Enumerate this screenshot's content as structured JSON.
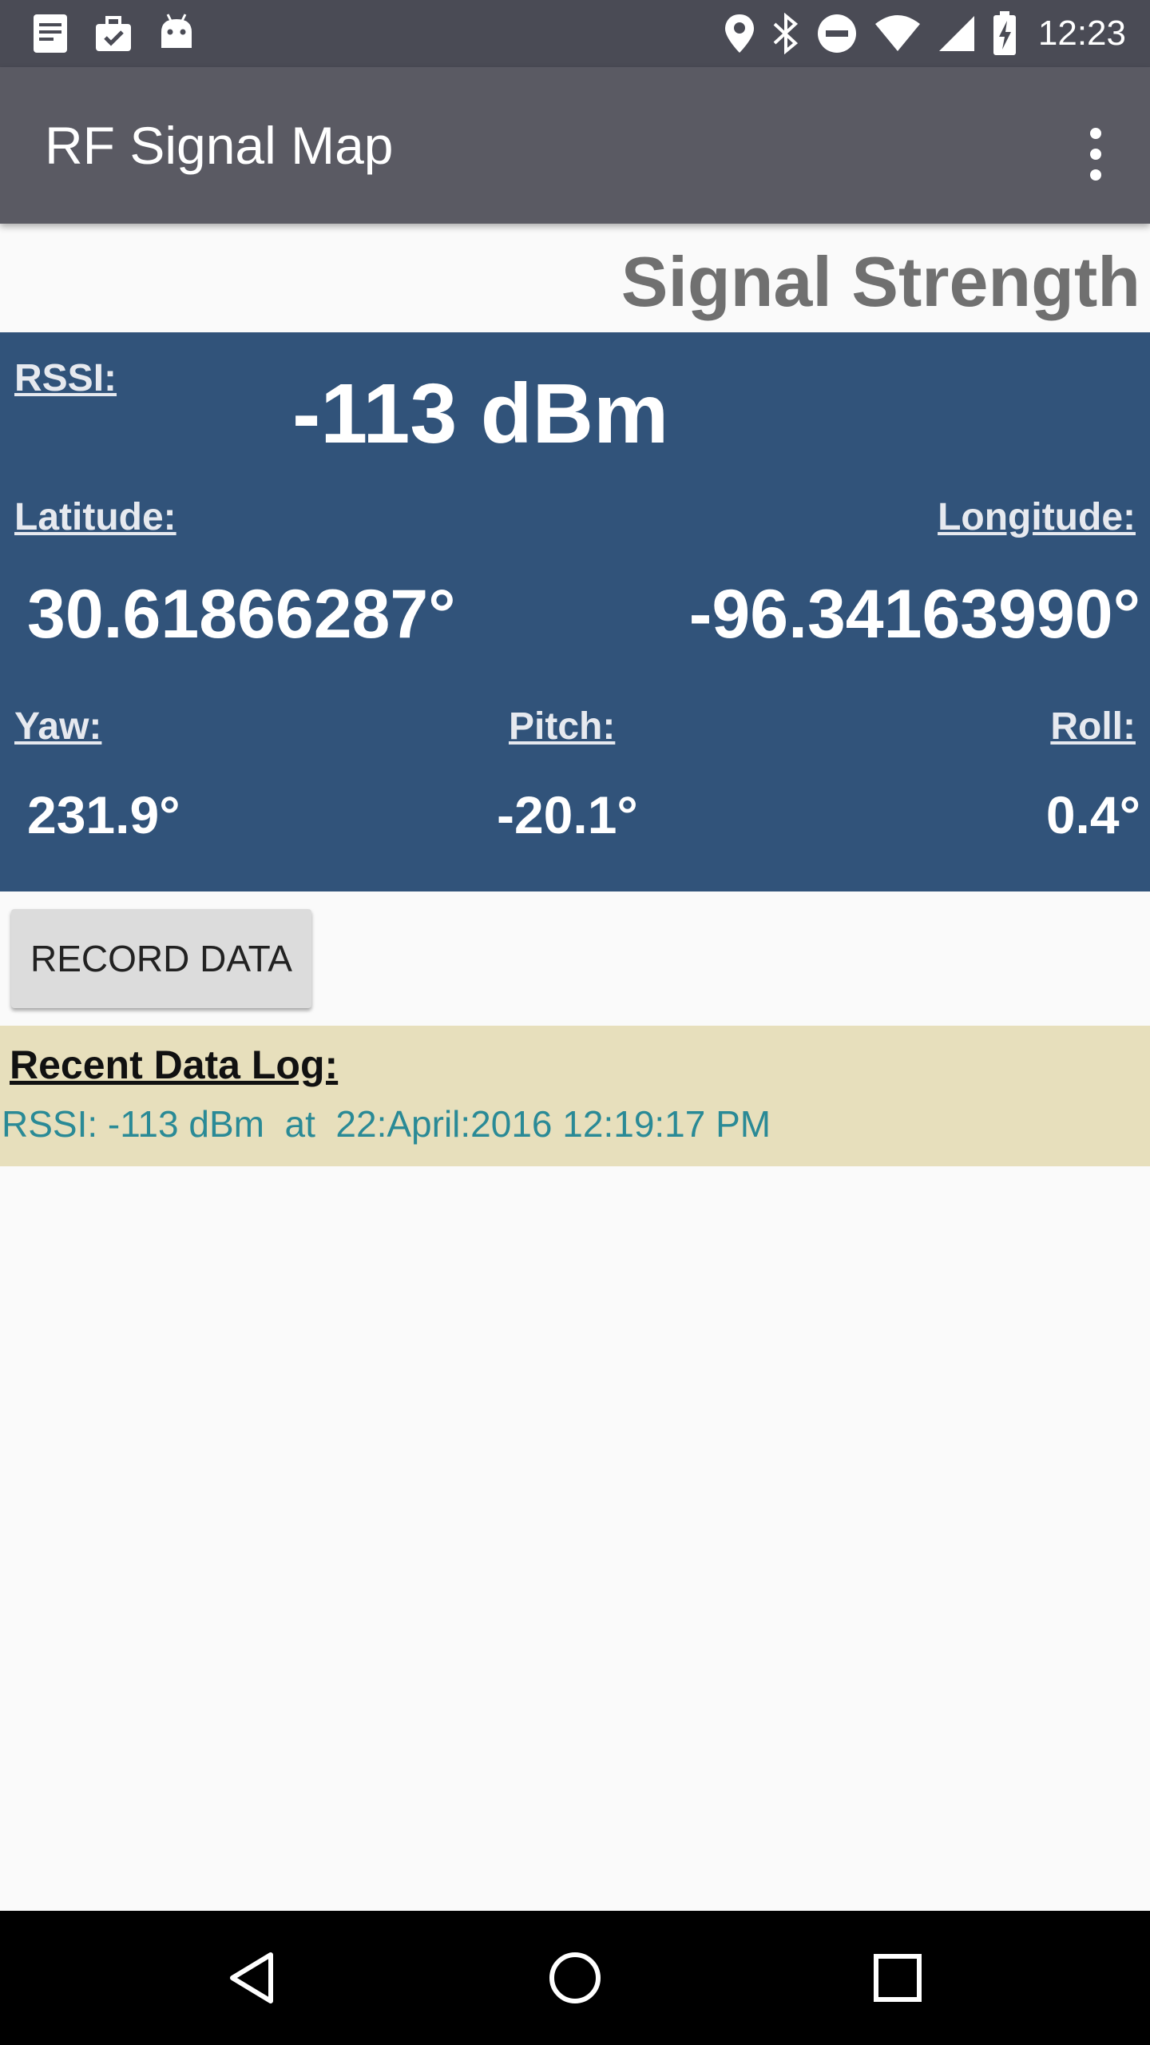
{
  "status_bar": {
    "time": "12:23",
    "left_icons": [
      "document-icon",
      "briefcase-check-icon",
      "android-icon"
    ],
    "right_icons": [
      "location-icon",
      "bluetooth-icon",
      "do-not-disturb-icon",
      "wifi-icon",
      "cell-signal-icon",
      "battery-charging-icon"
    ]
  },
  "app_bar": {
    "title": "RF Signal Map",
    "menu_icon": "overflow-menu-icon"
  },
  "section_title": "Signal Strength",
  "signal": {
    "rssi_label": "RSSI:",
    "rssi_value": "-113 dBm",
    "latitude_label": "Latitude:",
    "latitude_value": "30.61866287°",
    "longitude_label": "Longitude:",
    "longitude_value": "-96.34163990°",
    "yaw_label": "Yaw:",
    "yaw_value": "231.9°",
    "pitch_label": "Pitch:",
    "pitch_value": "-20.1°",
    "roll_label": "Roll:",
    "roll_value": "0.4°"
  },
  "actions": {
    "record_label": "RECORD DATA"
  },
  "log": {
    "title": "Recent Data Log:",
    "entry": "RSSI: -113 dBm  at  22:April:2016 12:19:17 PM"
  },
  "nav": {
    "icons": [
      "back-icon",
      "home-icon",
      "recents-icon"
    ]
  },
  "colors": {
    "status_bar": "#4a4b55",
    "app_bar": "#5a5a63",
    "signal_panel": "#31537a",
    "log_panel": "#e7dfbc",
    "log_text": "#2a8a96"
  }
}
